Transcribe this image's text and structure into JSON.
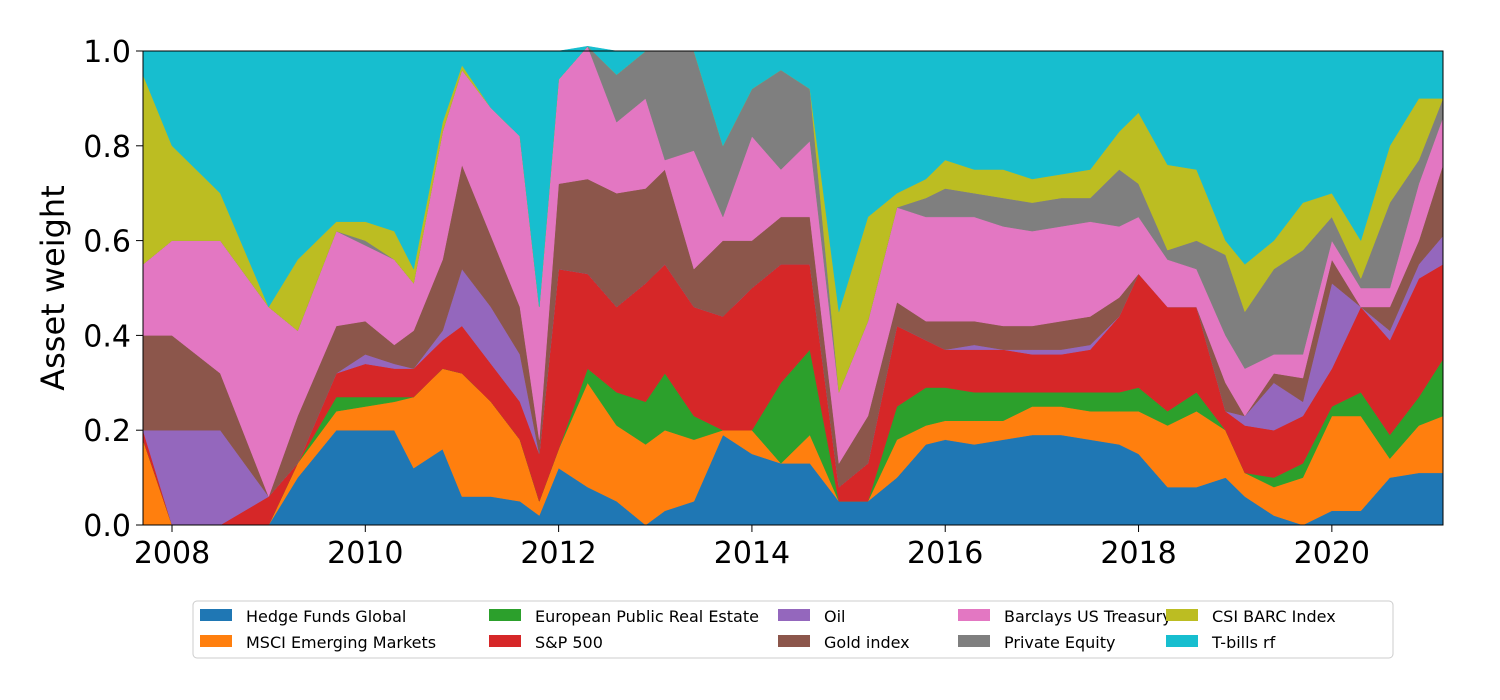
{
  "chart_data": {
    "type": "area",
    "stacked": true,
    "ylabel": "Asset weight",
    "xlabel": "",
    "xlim": [
      2007.7,
      2021.15
    ],
    "ylim": [
      0.0,
      1.0
    ],
    "x_ticks": [
      2008,
      2010,
      2012,
      2014,
      2016,
      2018,
      2020
    ],
    "y_ticks": [
      0.0,
      0.2,
      0.4,
      0.6,
      0.8,
      1.0
    ],
    "y_tick_labels": [
      "0.0",
      "0.2",
      "0.4",
      "0.6",
      "0.8",
      "1.0"
    ],
    "grid": false,
    "legend_position": "bottom",
    "legend_columns": 5,
    "x": [
      2007.7,
      2008.0,
      2008.5,
      2009.0,
      2009.3,
      2009.7,
      2010.0,
      2010.3,
      2010.5,
      2010.8,
      2011.0,
      2011.3,
      2011.6,
      2011.8,
      2012.0,
      2012.3,
      2012.6,
      2012.9,
      2013.1,
      2013.4,
      2013.7,
      2014.0,
      2014.3,
      2014.6,
      2014.9,
      2015.2,
      2015.5,
      2015.8,
      2016.0,
      2016.3,
      2016.6,
      2016.9,
      2017.2,
      2017.5,
      2017.8,
      2018.0,
      2018.3,
      2018.6,
      2018.9,
      2019.1,
      2019.4,
      2019.7,
      2020.0,
      2020.3,
      2020.6,
      2020.9,
      2021.15
    ],
    "series": [
      {
        "name": "Hedge Funds Global",
        "color": "#1f77b4",
        "values": [
          0.0,
          0.0,
          0.0,
          0.0,
          0.1,
          0.2,
          0.2,
          0.2,
          0.12,
          0.16,
          0.06,
          0.06,
          0.05,
          0.02,
          0.12,
          0.08,
          0.05,
          0.0,
          0.03,
          0.05,
          0.19,
          0.15,
          0.13,
          0.13,
          0.05,
          0.05,
          0.1,
          0.17,
          0.18,
          0.17,
          0.18,
          0.19,
          0.19,
          0.18,
          0.17,
          0.15,
          0.08,
          0.08,
          0.1,
          0.06,
          0.02,
          0.0,
          0.03,
          0.03,
          0.1,
          0.11,
          0.11
        ]
      },
      {
        "name": "MSCI Emerging Markets",
        "color": "#ff7f0e",
        "values": [
          0.18,
          0.0,
          0.0,
          0.0,
          0.03,
          0.04,
          0.05,
          0.06,
          0.15,
          0.17,
          0.26,
          0.2,
          0.13,
          0.03,
          0.04,
          0.22,
          0.16,
          0.17,
          0.17,
          0.13,
          0.01,
          0.05,
          0.0,
          0.06,
          0.0,
          0.0,
          0.08,
          0.04,
          0.04,
          0.05,
          0.04,
          0.06,
          0.06,
          0.06,
          0.07,
          0.09,
          0.13,
          0.16,
          0.1,
          0.05,
          0.06,
          0.1,
          0.2,
          0.2,
          0.04,
          0.1,
          0.12
        ]
      },
      {
        "name": "European Public Real Estate",
        "color": "#2ca02c",
        "values": [
          0.0,
          0.0,
          0.0,
          0.0,
          0.0,
          0.03,
          0.02,
          0.01,
          0.0,
          0.0,
          0.0,
          0.0,
          0.0,
          0.0,
          0.0,
          0.03,
          0.07,
          0.09,
          0.12,
          0.05,
          0.0,
          0.0,
          0.17,
          0.18,
          0.0,
          0.0,
          0.07,
          0.08,
          0.07,
          0.06,
          0.06,
          0.03,
          0.03,
          0.04,
          0.04,
          0.05,
          0.03,
          0.04,
          0.0,
          0.0,
          0.02,
          0.03,
          0.02,
          0.05,
          0.05,
          0.06,
          0.12
        ]
      },
      {
        "name": "S&P 500",
        "color": "#d62728",
        "values": [
          0.02,
          0.0,
          0.0,
          0.06,
          0.0,
          0.05,
          0.07,
          0.06,
          0.06,
          0.06,
          0.1,
          0.08,
          0.08,
          0.1,
          0.38,
          0.2,
          0.18,
          0.25,
          0.23,
          0.23,
          0.24,
          0.3,
          0.25,
          0.18,
          0.03,
          0.08,
          0.17,
          0.1,
          0.08,
          0.09,
          0.09,
          0.08,
          0.08,
          0.09,
          0.16,
          0.24,
          0.22,
          0.18,
          0.04,
          0.1,
          0.1,
          0.1,
          0.08,
          0.18,
          0.2,
          0.25,
          0.2
        ]
      },
      {
        "name": "Oil",
        "color": "#9467bd",
        "values": [
          0.0,
          0.2,
          0.2,
          0.0,
          0.0,
          0.0,
          0.02,
          0.01,
          0.0,
          0.02,
          0.12,
          0.12,
          0.1,
          0.0,
          0.0,
          0.0,
          0.0,
          0.0,
          0.0,
          0.0,
          0.0,
          0.0,
          0.0,
          0.0,
          0.0,
          0.0,
          0.0,
          0.0,
          0.0,
          0.01,
          0.0,
          0.01,
          0.01,
          0.01,
          0.0,
          0.0,
          0.0,
          0.0,
          0.0,
          0.02,
          0.1,
          0.03,
          0.18,
          0.0,
          0.02,
          0.03,
          0.06
        ]
      },
      {
        "name": "Gold index",
        "color": "#8c564b",
        "values": [
          0.2,
          0.2,
          0.12,
          0.0,
          0.1,
          0.1,
          0.07,
          0.04,
          0.08,
          0.15,
          0.22,
          0.15,
          0.1,
          0.03,
          0.18,
          0.2,
          0.24,
          0.2,
          0.2,
          0.08,
          0.16,
          0.1,
          0.1,
          0.1,
          0.05,
          0.1,
          0.05,
          0.04,
          0.06,
          0.05,
          0.05,
          0.05,
          0.06,
          0.06,
          0.04,
          0.0,
          0.0,
          0.0,
          0.06,
          0.0,
          0.02,
          0.05,
          0.05,
          0.0,
          0.05,
          0.05,
          0.15
        ]
      },
      {
        "name": "Barclays US Treasury",
        "color": "#e377c2",
        "values": [
          0.15,
          0.2,
          0.28,
          0.4,
          0.18,
          0.2,
          0.16,
          0.18,
          0.1,
          0.27,
          0.2,
          0.27,
          0.36,
          0.28,
          0.22,
          0.28,
          0.15,
          0.19,
          0.02,
          0.25,
          0.05,
          0.22,
          0.1,
          0.16,
          0.15,
          0.2,
          0.2,
          0.22,
          0.22,
          0.22,
          0.21,
          0.2,
          0.2,
          0.2,
          0.15,
          0.12,
          0.1,
          0.08,
          0.1,
          0.1,
          0.04,
          0.05,
          0.04,
          0.04,
          0.04,
          0.12,
          0.1
        ]
      },
      {
        "name": "Private Equity",
        "color": "#7f7f7f",
        "values": [
          0.0,
          0.0,
          0.0,
          0.0,
          0.0,
          0.0,
          0.01,
          0.0,
          0.0,
          0.0,
          0.0,
          0.0,
          0.0,
          0.0,
          0.0,
          0.0,
          0.1,
          0.1,
          0.23,
          0.21,
          0.15,
          0.1,
          0.21,
          0.11,
          0.0,
          0.0,
          0.0,
          0.04,
          0.06,
          0.05,
          0.06,
          0.06,
          0.06,
          0.05,
          0.12,
          0.07,
          0.02,
          0.06,
          0.17,
          0.12,
          0.18,
          0.22,
          0.05,
          0.02,
          0.18,
          0.05,
          0.04
        ]
      },
      {
        "name": "CSI BARC Index",
        "color": "#bcbd22",
        "values": [
          0.4,
          0.2,
          0.1,
          0.0,
          0.15,
          0.02,
          0.04,
          0.06,
          0.03,
          0.02,
          0.01,
          0.0,
          0.0,
          0.0,
          0.0,
          0.0,
          0.0,
          0.0,
          0.0,
          0.0,
          0.0,
          0.0,
          0.0,
          0.0,
          0.17,
          0.22,
          0.03,
          0.04,
          0.06,
          0.05,
          0.06,
          0.05,
          0.05,
          0.06,
          0.08,
          0.15,
          0.18,
          0.15,
          0.03,
          0.1,
          0.06,
          0.1,
          0.05,
          0.08,
          0.12,
          0.13,
          0.0
        ]
      },
      {
        "name": "T-bills rf",
        "color": "#17becf",
        "values": [
          0.05,
          0.2,
          0.3,
          0.54,
          0.44,
          0.36,
          0.36,
          0.38,
          0.46,
          0.15,
          0.03,
          0.12,
          0.18,
          0.54,
          0.06,
          0.0,
          0.05,
          0.0,
          0.0,
          0.0,
          0.2,
          0.08,
          0.04,
          0.08,
          0.55,
          0.35,
          0.3,
          0.27,
          0.23,
          0.25,
          0.25,
          0.27,
          0.26,
          0.25,
          0.17,
          0.13,
          0.24,
          0.25,
          0.4,
          0.45,
          0.4,
          0.32,
          0.3,
          0.4,
          0.2,
          0.1,
          0.1
        ]
      }
    ]
  }
}
